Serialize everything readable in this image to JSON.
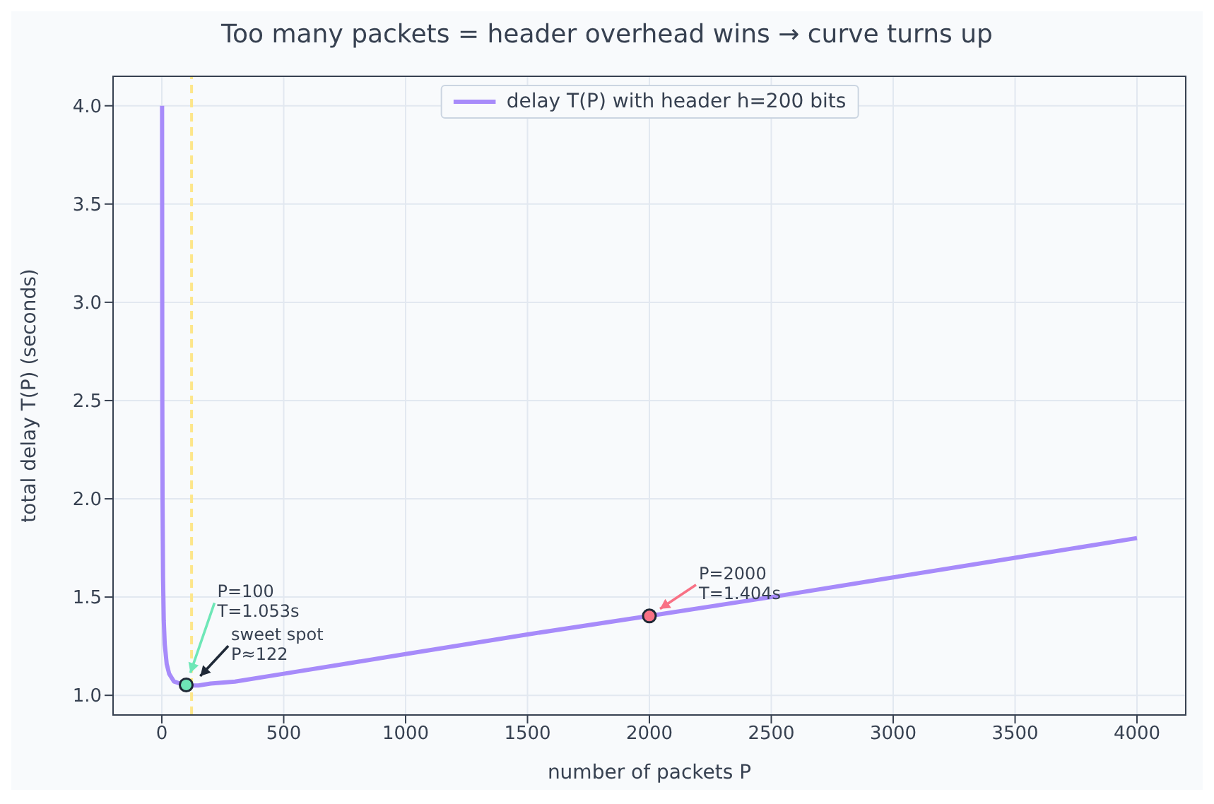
{
  "chart_data": {
    "type": "line",
    "title": "Too many packets = header overhead wins → curve turns up",
    "xlabel": "number of packets  P",
    "ylabel": "total delay  T(P)  (seconds)",
    "series": [
      {
        "name": "delay T(P) with header h=200 bits",
        "color": "#a78bfa",
        "marker": "none",
        "x": [
          1,
          2,
          3,
          5,
          8,
          12,
          20,
          30,
          50,
          75,
          100,
          122,
          150,
          200,
          300,
          500,
          750,
          1000,
          1500,
          2000,
          2500,
          3000,
          3500,
          4000
        ],
        "values": [
          4.0,
          2.5,
          2.0,
          1.6,
          1.38,
          1.26,
          1.16,
          1.11,
          1.07,
          1.06,
          1.053,
          1.05,
          1.05,
          1.06,
          1.07,
          1.11,
          1.16,
          1.21,
          1.31,
          1.404,
          1.5,
          1.6,
          1.7,
          1.8
        ]
      },
      {
        "type": "scatter",
        "color": "#6ee7b7",
        "marker": "circle",
        "x": [
          100
        ],
        "values": [
          1.053
        ]
      },
      {
        "type": "scatter",
        "color": "#f87185",
        "marker": "circle",
        "x": [
          2000
        ],
        "values": [
          1.404
        ]
      }
    ],
    "xlim": [
      -200,
      4200
    ],
    "xticks": [
      0,
      500,
      1000,
      1500,
      2000,
      2500,
      3000,
      3500,
      4000
    ],
    "ylim": [
      0.9,
      4.15
    ],
    "yticks": [
      {
        "value": 1,
        "label": "1.0"
      },
      {
        "value": 1.5,
        "label": "1.5"
      },
      {
        "value": 2,
        "label": "2.0"
      },
      {
        "value": 2.5,
        "label": "2.5"
      },
      {
        "value": 3,
        "label": "3.0"
      },
      {
        "value": 3.5,
        "label": "3.5"
      },
      {
        "value": 4,
        "label": "4.0"
      }
    ],
    "ref_lines": [
      {
        "axis": "x",
        "value": 122,
        "color": "#fde68a",
        "line_style": "dashed"
      }
    ],
    "annotations": [
      {
        "text": "P=100\nT=1.053s",
        "x": 100,
        "y": 1.053
      },
      {
        "text": "sweet spot\nP≈122",
        "x": 122,
        "y": 1.05
      },
      {
        "text": "P=2000\nT=1.404s",
        "x": 2000,
        "y": 1.404
      }
    ],
    "grid": true,
    "legend": "top"
  }
}
